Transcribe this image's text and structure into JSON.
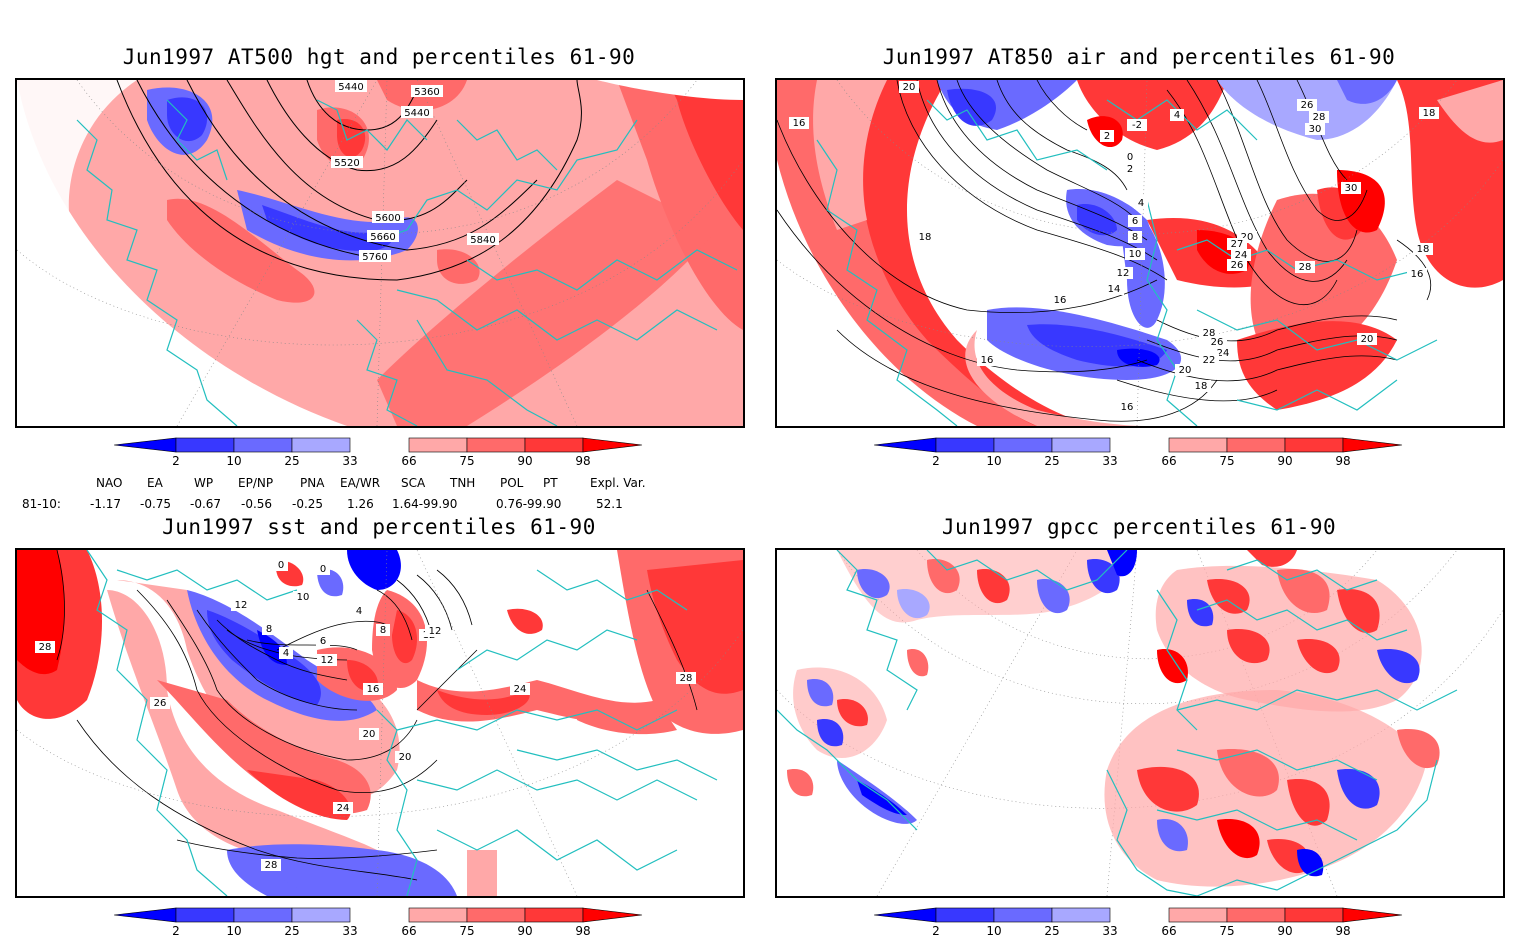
{
  "colors": {
    "coastline": "#22bfbf",
    "contour": "#000000",
    "scale": [
      "#0000ff",
      "#3838ff",
      "#6a6aff",
      "#a8a8ff",
      "#ffffff",
      "#ffa8a8",
      "#ff6a6a",
      "#ff3838",
      "#ff0000"
    ]
  },
  "colorbar_ticks": [
    "2",
    "10",
    "25",
    "33",
    "66",
    "75",
    "90",
    "98"
  ],
  "panels": [
    {
      "title": "Jun1997 AT500 hgt and percentiles 61-90",
      "contour_labels": [
        "5440",
        "5360",
        "5440",
        "5520",
        "5600",
        "5660",
        "5760",
        "5840"
      ]
    },
    {
      "title": "Jun1997 AT850 air and percentiles 61-90",
      "contour_labels": [
        "20",
        "16",
        "4",
        "2",
        "-2",
        "0",
        "2",
        "26",
        "28",
        "30",
        "18",
        "30",
        "4",
        "6",
        "8",
        "10",
        "12",
        "14",
        "16",
        "18",
        "20",
        "27",
        "24",
        "26",
        "28",
        "18",
        "16",
        "20",
        "28",
        "26",
        "24",
        "22",
        "20",
        "18",
        "16",
        "16"
      ]
    },
    {
      "title": "Jun1997 sst and percentiles 61-90",
      "contour_labels": [
        "0",
        "0",
        "10",
        "8",
        "4",
        "6",
        "12",
        "16",
        "20",
        "24",
        "28",
        "26",
        "20",
        "24",
        "28",
        "12",
        "4",
        "8",
        "12",
        "12",
        "28"
      ]
    },
    {
      "title": "Jun1997 gpcc percentiles 61-90",
      "contour_labels": []
    }
  ],
  "indices": {
    "headers": [
      "NAO",
      "EA",
      "WP",
      "EP/NP",
      "PNA",
      "EA/WR",
      "SCA",
      "TNH",
      "POL",
      "PT",
      "Expl. Var."
    ],
    "row_label": "81-10:",
    "values": [
      "-1.17",
      "-0.75",
      "-0.67",
      "-0.56",
      "-0.25",
      "1.26",
      "1.64-99.90",
      "",
      "0.76-99.90",
      "",
      "52.1"
    ]
  }
}
